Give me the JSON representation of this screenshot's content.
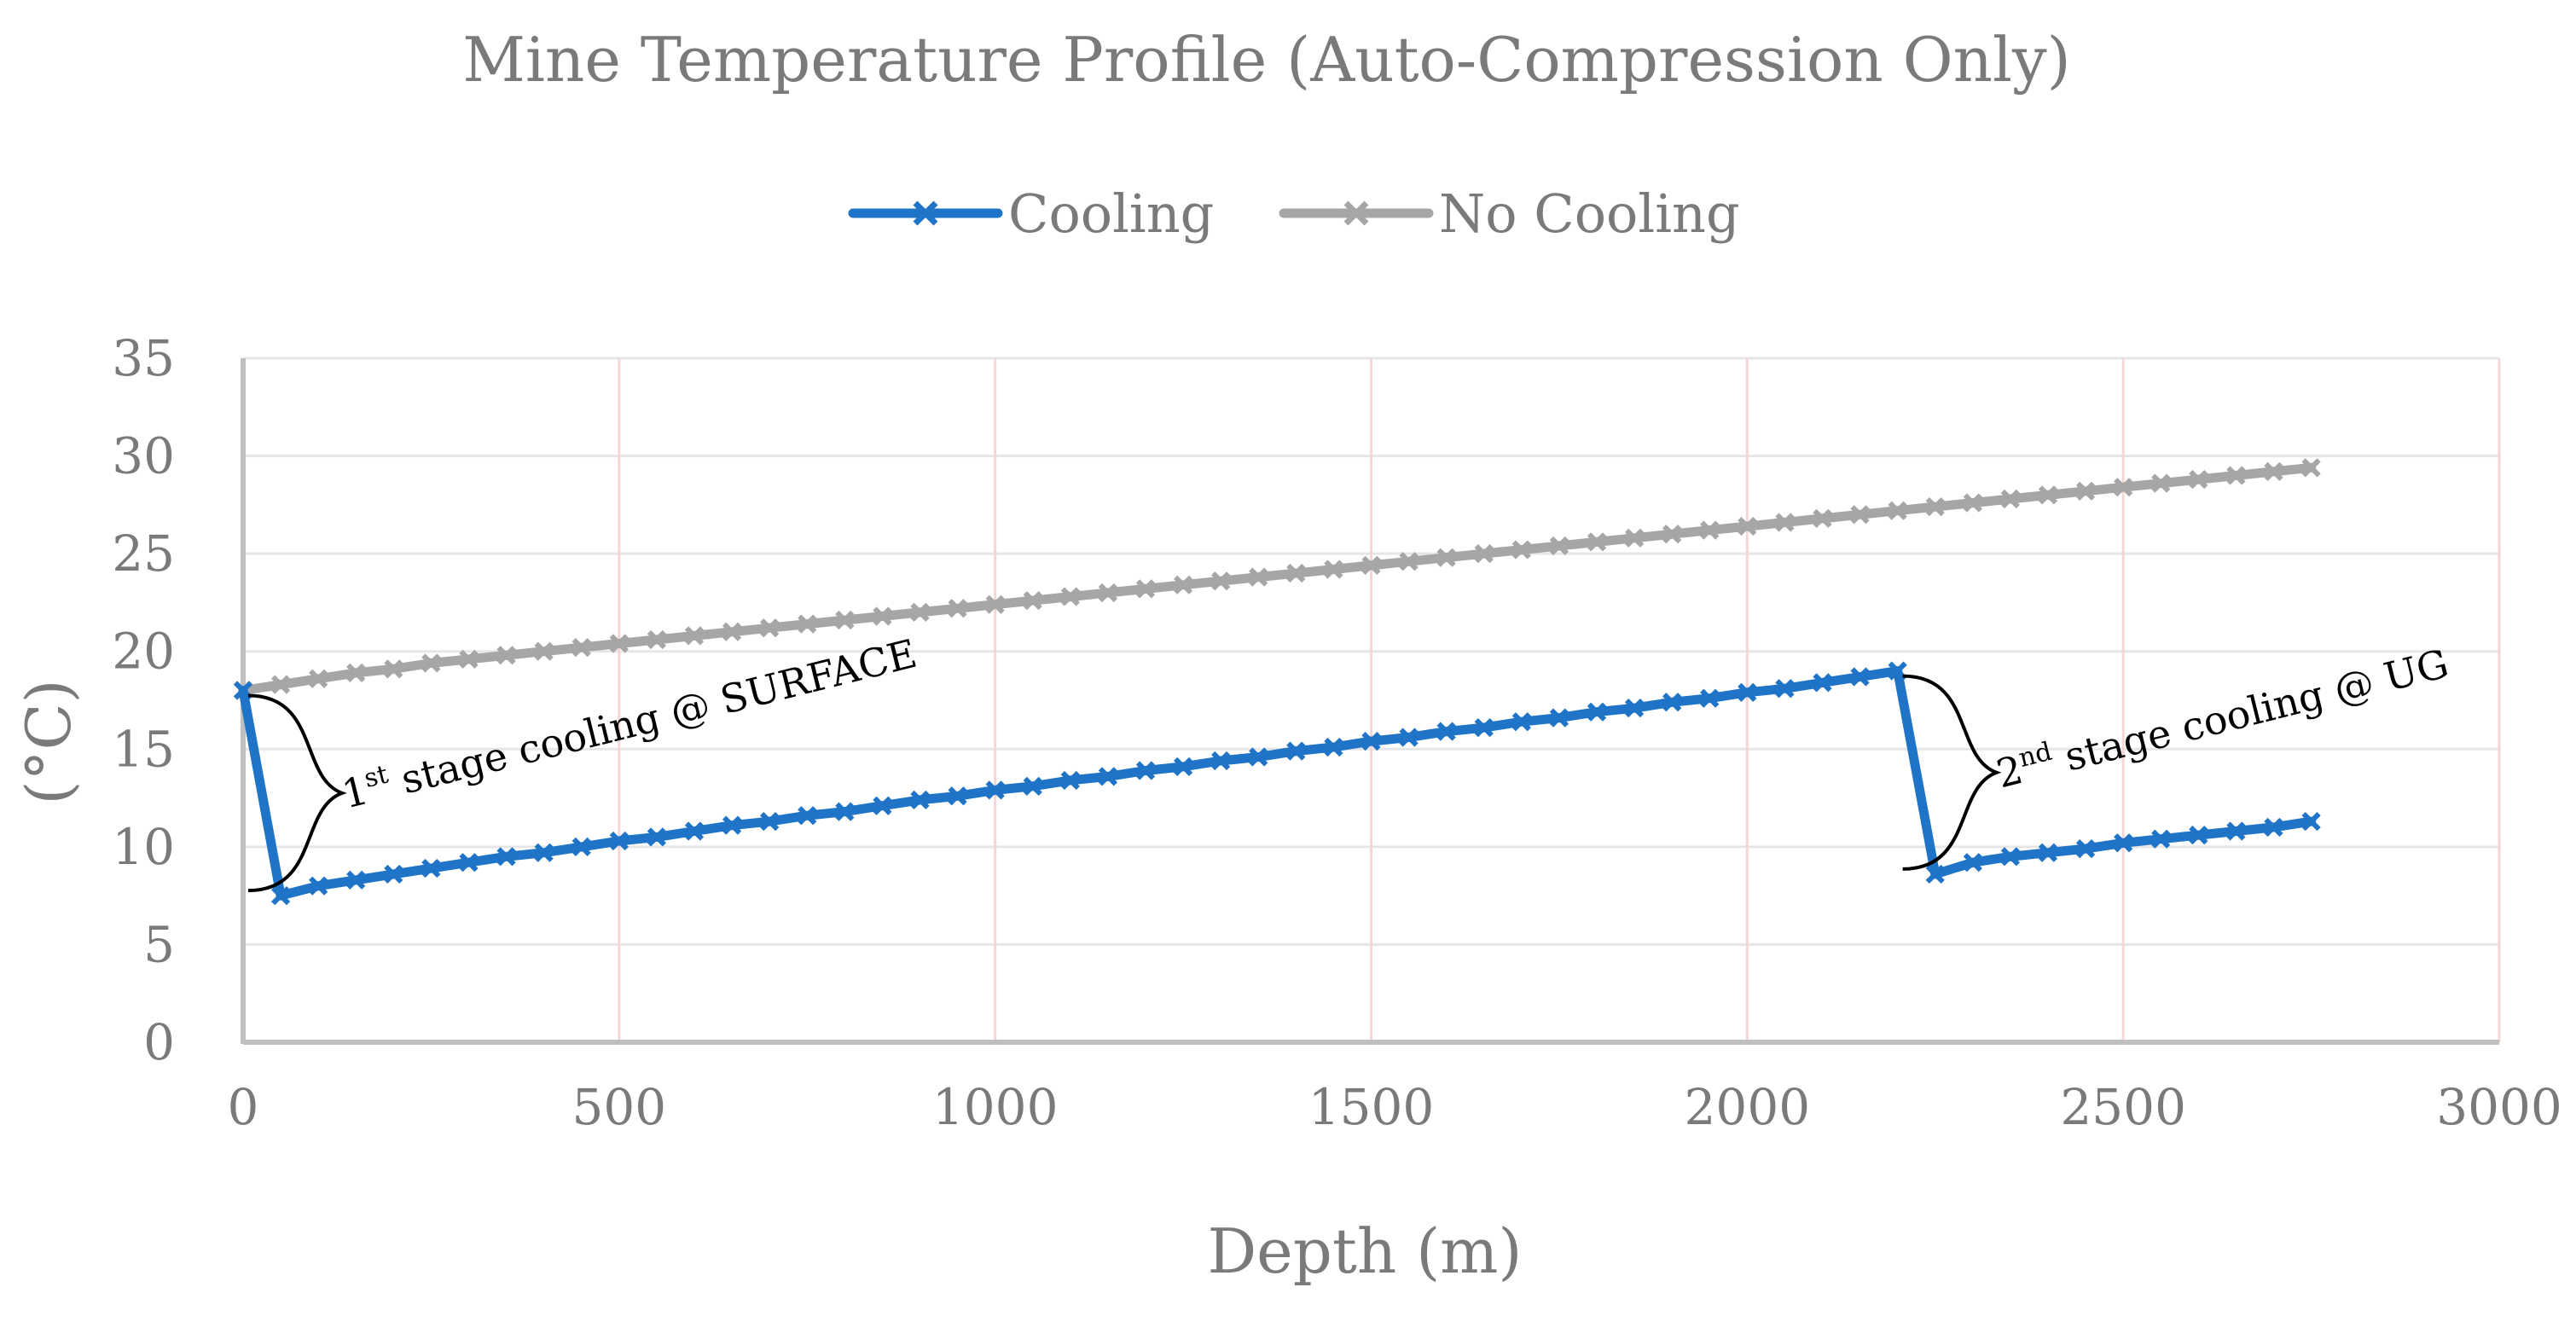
{
  "chart_data": {
    "type": "line",
    "title": "Mine Temperature Profile (Auto-Compression Only)",
    "xlabel": "Depth (m)",
    "ylabel": "(°C)",
    "xlim": [
      0,
      3000
    ],
    "ylim": [
      0,
      35
    ],
    "x_ticks": [
      0,
      500,
      1000,
      1500,
      2000,
      2500,
      3000
    ],
    "y_ticks": [
      0,
      5,
      10,
      15,
      20,
      25,
      30,
      35
    ],
    "grid": true,
    "legend_position": "top",
    "series": [
      {
        "name": "Cooling",
        "color": "#1f74c8",
        "marker": "x",
        "points": [
          [
            0,
            18.0
          ],
          [
            50,
            7.5
          ],
          [
            100,
            8.0
          ],
          [
            150,
            8.3
          ],
          [
            200,
            8.6
          ],
          [
            250,
            8.9
          ],
          [
            300,
            9.2
          ],
          [
            350,
            9.5
          ],
          [
            400,
            9.7
          ],
          [
            450,
            10.0
          ],
          [
            500,
            10.3
          ],
          [
            550,
            10.5
          ],
          [
            600,
            10.8
          ],
          [
            650,
            11.1
          ],
          [
            700,
            11.3
          ],
          [
            750,
            11.6
          ],
          [
            800,
            11.8
          ],
          [
            850,
            12.1
          ],
          [
            900,
            12.4
          ],
          [
            950,
            12.6
          ],
          [
            1000,
            12.9
          ],
          [
            1050,
            13.1
          ],
          [
            1100,
            13.4
          ],
          [
            1150,
            13.6
          ],
          [
            1200,
            13.9
          ],
          [
            1250,
            14.1
          ],
          [
            1300,
            14.4
          ],
          [
            1350,
            14.6
          ],
          [
            1400,
            14.9
          ],
          [
            1450,
            15.1
          ],
          [
            1500,
            15.4
          ],
          [
            1550,
            15.6
          ],
          [
            1600,
            15.9
          ],
          [
            1650,
            16.1
          ],
          [
            1700,
            16.4
          ],
          [
            1750,
            16.6
          ],
          [
            1800,
            16.9
          ],
          [
            1850,
            17.1
          ],
          [
            1900,
            17.4
          ],
          [
            1950,
            17.6
          ],
          [
            2000,
            17.9
          ],
          [
            2050,
            18.1
          ],
          [
            2100,
            18.4
          ],
          [
            2150,
            18.7
          ],
          [
            2200,
            19.0
          ],
          [
            2250,
            8.6
          ],
          [
            2300,
            9.2
          ],
          [
            2350,
            9.5
          ],
          [
            2400,
            9.7
          ],
          [
            2450,
            9.9
          ],
          [
            2500,
            10.2
          ],
          [
            2550,
            10.4
          ],
          [
            2600,
            10.6
          ],
          [
            2650,
            10.8
          ],
          [
            2700,
            11.0
          ],
          [
            2750,
            11.3
          ]
        ]
      },
      {
        "name": "No Cooling",
        "color": "#a6a6a6",
        "marker": "x",
        "points": [
          [
            0,
            18.0
          ],
          [
            50,
            18.3
          ],
          [
            100,
            18.6
          ],
          [
            150,
            18.9
          ],
          [
            200,
            19.1
          ],
          [
            250,
            19.4
          ],
          [
            300,
            19.6
          ],
          [
            350,
            19.8
          ],
          [
            400,
            20.0
          ],
          [
            450,
            20.2
          ],
          [
            500,
            20.4
          ],
          [
            550,
            20.6
          ],
          [
            600,
            20.8
          ],
          [
            650,
            21.0
          ],
          [
            700,
            21.2
          ],
          [
            750,
            21.4
          ],
          [
            800,
            21.6
          ],
          [
            850,
            21.8
          ],
          [
            900,
            22.0
          ],
          [
            950,
            22.2
          ],
          [
            1000,
            22.4
          ],
          [
            1050,
            22.6
          ],
          [
            1100,
            22.8
          ],
          [
            1150,
            23.0
          ],
          [
            1200,
            23.2
          ],
          [
            1250,
            23.4
          ],
          [
            1300,
            23.6
          ],
          [
            1350,
            23.8
          ],
          [
            1400,
            24.0
          ],
          [
            1450,
            24.2
          ],
          [
            1500,
            24.4
          ],
          [
            1550,
            24.6
          ],
          [
            1600,
            24.8
          ],
          [
            1650,
            25.0
          ],
          [
            1700,
            25.2
          ],
          [
            1750,
            25.4
          ],
          [
            1800,
            25.6
          ],
          [
            1850,
            25.8
          ],
          [
            1900,
            26.0
          ],
          [
            1950,
            26.2
          ],
          [
            2000,
            26.4
          ],
          [
            2050,
            26.6
          ],
          [
            2100,
            26.8
          ],
          [
            2150,
            27.0
          ],
          [
            2200,
            27.2
          ],
          [
            2250,
            27.4
          ],
          [
            2300,
            27.6
          ],
          [
            2350,
            27.8
          ],
          [
            2400,
            28.0
          ],
          [
            2450,
            28.2
          ],
          [
            2500,
            28.4
          ],
          [
            2550,
            28.6
          ],
          [
            2600,
            28.8
          ],
          [
            2650,
            29.0
          ],
          [
            2700,
            29.2
          ],
          [
            2750,
            29.4
          ]
        ]
      }
    ],
    "annotations": [
      {
        "id": "stage1",
        "number": "1",
        "superscript": "st",
        "text": " stage cooling @ SURFACE",
        "x": 0,
        "y_top": 18.0,
        "y_bottom": 7.5
      },
      {
        "id": "stage2",
        "number": "2",
        "superscript": "nd",
        "text": " stage cooling @ UG",
        "x": 2200,
        "y_top": 19.0,
        "y_bottom": 8.6
      }
    ]
  }
}
